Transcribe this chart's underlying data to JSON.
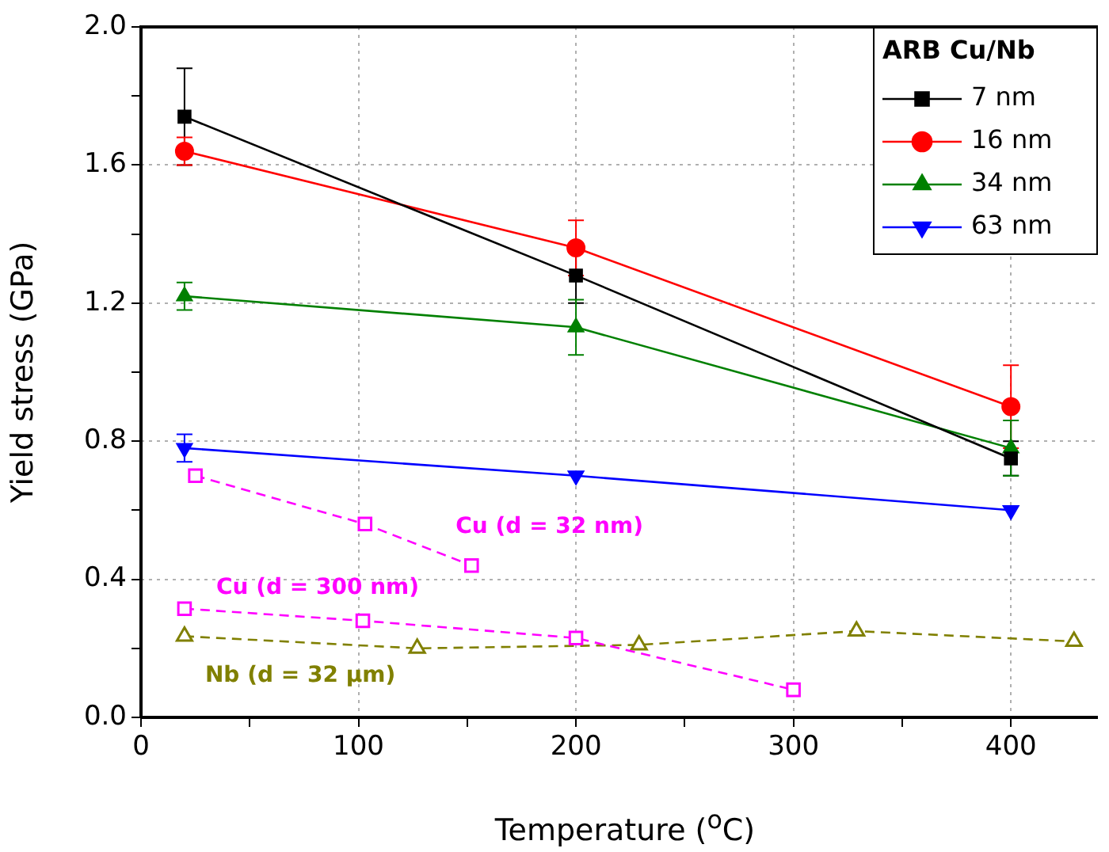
{
  "chart_data": {
    "type": "line",
    "xlabel": "Temperature ($^{o}$C)",
    "ylabel": "Yield stress (GPa)",
    "legend_title": "ARB Cu/Nb",
    "legend": "top right",
    "grid": true,
    "xlim": [
      0,
      440
    ],
    "xticks": [
      0,
      {
        "value": 50,
        "label": null
      },
      100,
      {
        "value": 150,
        "label": null
      },
      200,
      {
        "value": 250,
        "label": null
      },
      300,
      {
        "value": 350,
        "label": null
      },
      400
    ],
    "ylim": [
      0,
      2
    ],
    "yticks": [
      {
        "value": 0,
        "label": "0.0"
      },
      {
        "value": 0.2,
        "label": null
      },
      0.4,
      {
        "value": 0.6,
        "label": null
      },
      0.8,
      {
        "value": 1.0,
        "label": null
      },
      1.2,
      {
        "value": 1.4,
        "label": null
      },
      1.6,
      {
        "value": 1.8,
        "label": null
      },
      {
        "value": 2.0,
        "label": "2.0"
      }
    ],
    "series": [
      {
        "name": "7 nm",
        "color": "#000000",
        "marker": "square",
        "line_style": "solid",
        "x": [
          20,
          200,
          400
        ],
        "values": [
          1.74,
          1.28,
          0.75
        ],
        "errors": [
          0.14,
          0.08,
          0.05
        ]
      },
      {
        "name": "16 nm",
        "color": "#ff0000",
        "marker": "circle",
        "line_style": "solid",
        "x": [
          20,
          200,
          400
        ],
        "values": [
          1.64,
          1.36,
          0.9
        ],
        "errors": [
          0.04,
          0.08,
          0.12
        ]
      },
      {
        "name": "34 nm",
        "color": "#008000",
        "marker": "triangle",
        "line_style": "solid",
        "x": [
          20,
          200,
          400
        ],
        "values": [
          1.22,
          1.13,
          0.78
        ],
        "errors": [
          0.04,
          0.08,
          0.08
        ]
      },
      {
        "name": "63 nm",
        "color": "#0000ff",
        "marker": "triangle-down",
        "line_style": "solid",
        "x": [
          20,
          200,
          400
        ],
        "values": [
          0.78,
          0.7,
          0.6
        ],
        "errors": [
          0.04,
          null,
          null
        ]
      },
      {
        "name": "Cu (d = 32 nm)",
        "color": "#ff00ff",
        "marker": "square",
        "line_style": "dashed",
        "x": [
          25,
          103,
          152
        ],
        "values": [
          0.7,
          0.56,
          0.44
        ]
      },
      {
        "name": "Cu (d = 300 nm)",
        "color": "#ff00ff",
        "marker": "square",
        "line_style": "dashed",
        "x": [
          20,
          102,
          200,
          300
        ],
        "values": [
          0.315,
          0.28,
          0.23,
          0.08
        ]
      },
      {
        "name": "Nb (d = 32 μm)",
        "color": "#808000",
        "marker": "triangle",
        "line_style": "dashed",
        "x": [
          20,
          127,
          229,
          329,
          429
        ],
        "values": [
          0.235,
          0.2,
          0.21,
          0.25,
          0.22
        ]
      }
    ]
  }
}
